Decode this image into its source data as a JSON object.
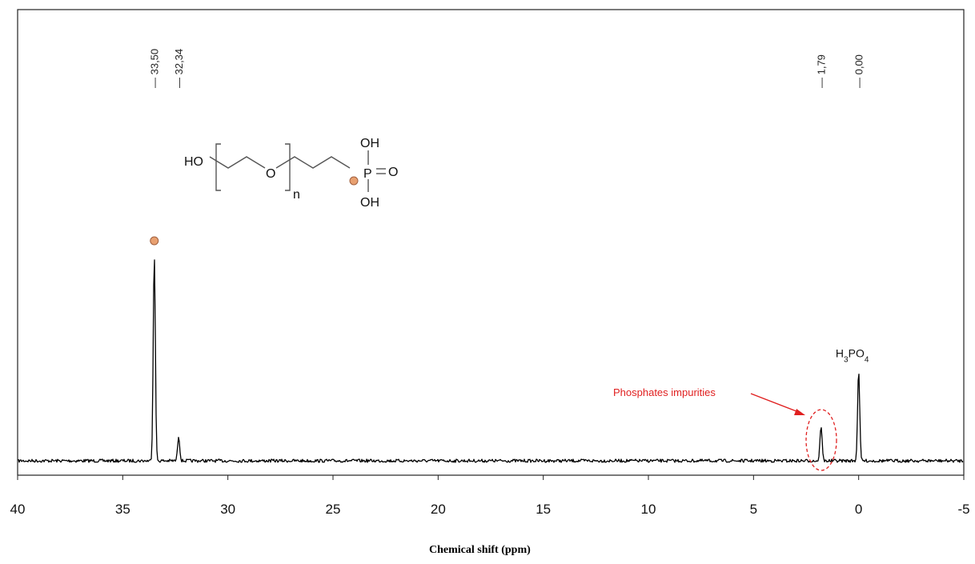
{
  "chart_data": {
    "type": "line",
    "xlabel": "Chemical shift (ppm)",
    "ylabel": "",
    "x_axis": {
      "range": [
        40,
        -5
      ],
      "reversed": true,
      "ticks": [
        40,
        35,
        30,
        25,
        20,
        15,
        10,
        5,
        0,
        -5
      ]
    },
    "tick_labels": [
      "40",
      "35",
      "30",
      "25",
      "20",
      "15",
      "10",
      "5",
      "0",
      "-5"
    ],
    "peak_labels": [
      "33,50",
      "32,34",
      "1,79",
      "0,00"
    ],
    "peaks": [
      {
        "x": 33.5,
        "intensity": 1.0
      },
      {
        "x": 32.34,
        "intensity": 0.12
      },
      {
        "x": 1.79,
        "intensity": 0.17
      },
      {
        "x": 0.0,
        "intensity": 0.44
      }
    ],
    "annotations": {
      "reference": "H3PO4",
      "impurity_label": "Phosphates impurities",
      "impurity_color": "#e02020",
      "marker_color": "#e8a070"
    },
    "structure": {
      "ho": "HO",
      "o": "O",
      "n": "n",
      "p": "P",
      "oh_top": "OH",
      "oh_bottom": "OH",
      "double_o": "O"
    },
    "grid": false,
    "frame": true
  }
}
